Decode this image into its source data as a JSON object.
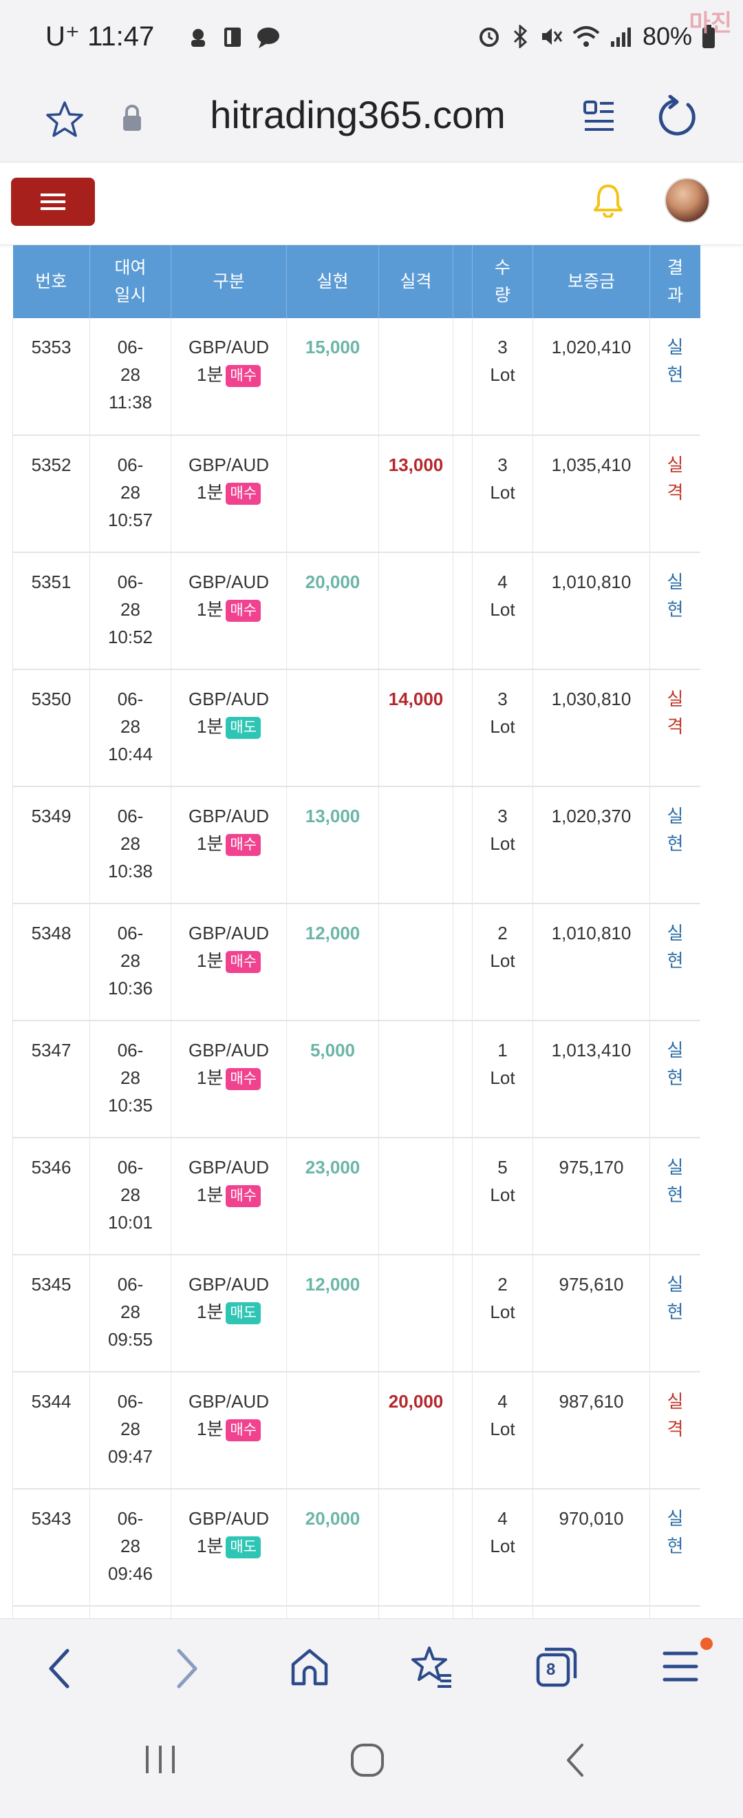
{
  "status_bar": {
    "carrier": "U⁺",
    "time": "11:47",
    "battery": "80%",
    "watermark": "마진"
  },
  "browser": {
    "url": "hitrading365.com",
    "tab_count": "8"
  },
  "table": {
    "headers": [
      "번호",
      "대여\n일시",
      "구분",
      "실현",
      "실격",
      "",
      "수\n량",
      "보증금",
      "결\n과"
    ],
    "rows": [
      {
        "no": "5353",
        "date": "06-\n28\n11:38",
        "pair": "GBP/AUD",
        "period": "1분",
        "side": "매수",
        "side_type": "buy",
        "realize": "15,000",
        "loss": "",
        "qty": "3\nLot",
        "deposit": "1,020,410",
        "result": "실\n현",
        "result_type": "real"
      },
      {
        "no": "5352",
        "date": "06-\n28\n10:57",
        "pair": "GBP/AUD",
        "period": "1분",
        "side": "매수",
        "side_type": "buy",
        "realize": "",
        "loss": "13,000",
        "qty": "3\nLot",
        "deposit": "1,035,410",
        "result": "실\n격",
        "result_type": "loss"
      },
      {
        "no": "5351",
        "date": "06-\n28\n10:52",
        "pair": "GBP/AUD",
        "period": "1분",
        "side": "매수",
        "side_type": "buy",
        "realize": "20,000",
        "loss": "",
        "qty": "4\nLot",
        "deposit": "1,010,810",
        "result": "실\n현",
        "result_type": "real"
      },
      {
        "no": "5350",
        "date": "06-\n28\n10:44",
        "pair": "GBP/AUD",
        "period": "1분",
        "side": "매도",
        "side_type": "sell",
        "realize": "",
        "loss": "14,000",
        "qty": "3\nLot",
        "deposit": "1,030,810",
        "result": "실\n격",
        "result_type": "loss"
      },
      {
        "no": "5349",
        "date": "06-\n28\n10:38",
        "pair": "GBP/AUD",
        "period": "1분",
        "side": "매수",
        "side_type": "buy",
        "realize": "13,000",
        "loss": "",
        "qty": "3\nLot",
        "deposit": "1,020,370",
        "result": "실\n현",
        "result_type": "real"
      },
      {
        "no": "5348",
        "date": "06-\n28\n10:36",
        "pair": "GBP/AUD",
        "period": "1분",
        "side": "매수",
        "side_type": "buy",
        "realize": "12,000",
        "loss": "",
        "qty": "2\nLot",
        "deposit": "1,010,810",
        "result": "실\n현",
        "result_type": "real"
      },
      {
        "no": "5347",
        "date": "06-\n28\n10:35",
        "pair": "GBP/AUD",
        "period": "1분",
        "side": "매수",
        "side_type": "buy",
        "realize": "5,000",
        "loss": "",
        "qty": "1\nLot",
        "deposit": "1,013,410",
        "result": "실\n현",
        "result_type": "real"
      },
      {
        "no": "5346",
        "date": "06-\n28\n10:01",
        "pair": "GBP/AUD",
        "period": "1분",
        "side": "매수",
        "side_type": "buy",
        "realize": "23,000",
        "loss": "",
        "qty": "5\nLot",
        "deposit": "975,170",
        "result": "실\n현",
        "result_type": "real"
      },
      {
        "no": "5345",
        "date": "06-\n28\n09:55",
        "pair": "GBP/AUD",
        "period": "1분",
        "side": "매도",
        "side_type": "sell",
        "realize": "12,000",
        "loss": "",
        "qty": "2\nLot",
        "deposit": "975,610",
        "result": "실\n현",
        "result_type": "real"
      },
      {
        "no": "5344",
        "date": "06-\n28\n09:47",
        "pair": "GBP/AUD",
        "period": "1분",
        "side": "매수",
        "side_type": "buy",
        "realize": "",
        "loss": "20,000",
        "qty": "4\nLot",
        "deposit": "987,610",
        "result": "실\n격",
        "result_type": "loss"
      },
      {
        "no": "5343",
        "date": "06-\n28\n09:46",
        "pair": "GBP/AUD",
        "period": "1분",
        "side": "매도",
        "side_type": "sell",
        "realize": "20,000",
        "loss": "",
        "qty": "4\nLot",
        "deposit": "970,010",
        "result": "실\n현",
        "result_type": "real"
      },
      {
        "no": "",
        "date": "",
        "pair": "",
        "period": "",
        "side": "",
        "side_type": "",
        "realize": "",
        "loss": "",
        "qty": "",
        "deposit": "",
        "result": "",
        "result_type": ""
      }
    ]
  },
  "colors": {
    "header_bg": "#5b9bd5",
    "menu_button": "#a8201c",
    "realize_text": "#6bb5a8",
    "loss_text": "#b5272c",
    "buy_badge": "#f0428f",
    "sell_badge": "#2fc5b5",
    "icon_navy": "#2c4a8a"
  },
  "icons": [
    "bookmark-star-icon",
    "lock-icon",
    "reader-mode-icon",
    "reload-icon",
    "hamburger-icon",
    "bell-icon",
    "back-icon",
    "forward-icon",
    "home-icon",
    "bookmarks-icon",
    "tabs-icon",
    "menu-icon",
    "recents-icon",
    "home-circle-icon",
    "nav-back-icon"
  ]
}
